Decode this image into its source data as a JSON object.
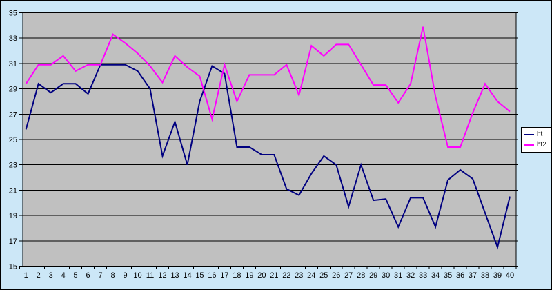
{
  "chart_data": {
    "type": "line",
    "title": "",
    "xlabel": "",
    "ylabel": "",
    "x": [
      1,
      2,
      3,
      4,
      5,
      6,
      7,
      8,
      9,
      10,
      11,
      12,
      13,
      14,
      15,
      16,
      17,
      18,
      19,
      20,
      21,
      22,
      23,
      24,
      25,
      26,
      27,
      28,
      29,
      30,
      31,
      32,
      33,
      34,
      35,
      36,
      37,
      38,
      39,
      40
    ],
    "series": [
      {
        "name": "ht",
        "color": "#000080",
        "values": [
          25.8,
          29.4,
          28.7,
          29.4,
          29.4,
          28.6,
          30.9,
          30.9,
          30.9,
          30.4,
          29.0,
          23.7,
          26.4,
          23.0,
          28.0,
          30.8,
          30.2,
          24.4,
          24.4,
          23.8,
          23.8,
          21.1,
          20.6,
          22.3,
          23.7,
          23.0,
          19.7,
          23.0,
          20.2,
          20.3,
          18.1,
          20.4,
          20.4,
          18.1,
          21.8,
          22.6,
          21.9,
          19.2,
          16.5,
          20.5
        ]
      },
      {
        "name": "ht2",
        "color": "#ff00ff",
        "values": [
          29.4,
          30.9,
          30.9,
          31.6,
          30.4,
          30.9,
          30.9,
          33.3,
          32.6,
          31.8,
          30.8,
          29.5,
          31.6,
          30.7,
          30.0,
          26.6,
          30.9,
          28.0,
          30.1,
          30.1,
          30.1,
          30.9,
          28.5,
          32.4,
          31.6,
          32.5,
          32.5,
          30.9,
          29.3,
          29.3,
          27.9,
          29.4,
          33.9,
          28.4,
          24.4,
          24.4,
          27.1,
          29.4,
          28.0,
          27.2
        ]
      }
    ],
    "ylim": [
      15,
      35
    ],
    "ytick_step": 2,
    "y_tick_labels": [
      "15",
      "17",
      "19",
      "21",
      "23",
      "25",
      "27",
      "29",
      "31",
      "33",
      "35"
    ],
    "grid": "horizontal",
    "legend_position": "right",
    "plot_bg": "#c0c0c0",
    "chart_bg": "#cce7f7",
    "axis_color": "#000000"
  },
  "legend": {
    "items": [
      {
        "label": "ht"
      },
      {
        "label": "ht2"
      }
    ]
  }
}
